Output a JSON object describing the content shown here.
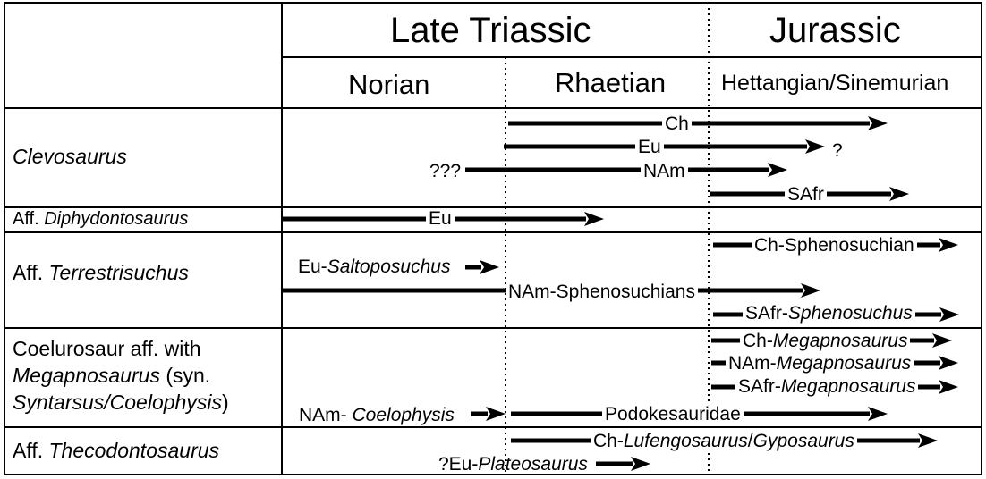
{
  "header": {
    "late_triassic": "Late Triassic",
    "jurassic": "Jurassic",
    "norian": "Norian",
    "rhaetian": "Rhaetian",
    "hettangian": "Hettangian/Sinemurian"
  },
  "rows": {
    "clevosaurus": {
      "name": "Clevosaurus"
    },
    "diphydontosaurus": {
      "prefix": "Aff. ",
      "name": "Diphydontosaurus"
    },
    "terrestrisuchus": {
      "prefix": "Aff. ",
      "name": "Terrestrisuchus"
    },
    "coelurosaur": {
      "line1": "Coelurosaur aff. with",
      "line2_italic": "Megapnosaurus",
      "line2_rest": " (syn.",
      "line3_italic": "Syntarsus/Coelophysis",
      "line3_rest": ")"
    },
    "thecodontosaurus": {
      "prefix": "Aff. ",
      "name": "Thecodontosaurus"
    }
  },
  "ranges": {
    "clev_ch": "Ch",
    "clev_eu": "Eu",
    "clev_eu_q": "?",
    "clev_nam_q": "???",
    "clev_nam": "NAm",
    "clev_safr": "SAfr",
    "diph_eu": "Eu",
    "terr_ch": "Ch-Sphenosuchian",
    "terr_eu_prefix": "Eu-",
    "terr_eu_italic": "Saltoposuchus",
    "terr_nam": "NAm-Sphenosuchians",
    "terr_safr_prefix": "SAfr-",
    "terr_safr_italic": "Sphenosuchus",
    "coel_ch_prefix": "Ch-",
    "coel_ch_italic": "Megapnosaurus",
    "coel_nam_prefix": "NAm-",
    "coel_nam_italic": "Megapnosaurus",
    "coel_safr_prefix": "SAfr-",
    "coel_safr_italic": "Megapnosaurus",
    "coel_namc_prefix": "NAm- ",
    "coel_namc_italic": "Coelophysis",
    "coel_podo": "Podokesauridae",
    "thec_ch_prefix": "Ch-",
    "thec_ch_italic1": "Lufengosaurus",
    "thec_ch_slash": "/",
    "thec_ch_italic2": "Gyposaurus",
    "thec_eu_prefix": "?Eu-",
    "thec_eu_italic": "Plateosaurus"
  }
}
